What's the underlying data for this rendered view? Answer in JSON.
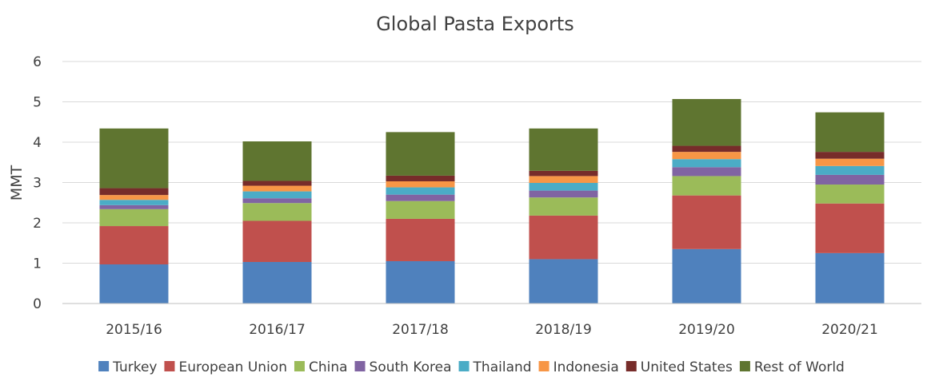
{
  "chart_data": {
    "type": "bar",
    "stacked": true,
    "title": "Global Pasta Exports",
    "xlabel": "",
    "ylabel": "MMT",
    "ylim": [
      0,
      6
    ],
    "yticks": [
      "0",
      "1",
      "2",
      "3",
      "4",
      "5",
      "6"
    ],
    "grid": true,
    "legend_position": "bottom",
    "categories": [
      "2015/16",
      "2016/17",
      "2017/18",
      "2018/19",
      "2019/20",
      "2020/21"
    ],
    "series": [
      {
        "name": "Turkey",
        "color": "#4f81bd",
        "values": [
          0.97,
          1.03,
          1.05,
          1.1,
          1.35,
          1.25
        ]
      },
      {
        "name": "European  Union",
        "color": "#c0504d",
        "values": [
          0.95,
          1.02,
          1.05,
          1.08,
          1.33,
          1.23
        ]
      },
      {
        "name": "China",
        "color": "#9bbb59",
        "values": [
          0.42,
          0.44,
          0.44,
          0.45,
          0.48,
          0.47
        ]
      },
      {
        "name": "South Korea",
        "color": "#8064a2",
        "values": [
          0.1,
          0.12,
          0.16,
          0.17,
          0.22,
          0.24
        ]
      },
      {
        "name": "Thailand",
        "color": "#4bacc6",
        "values": [
          0.13,
          0.17,
          0.18,
          0.19,
          0.2,
          0.22
        ]
      },
      {
        "name": "Indonesia",
        "color": "#f79646",
        "values": [
          0.12,
          0.14,
          0.15,
          0.17,
          0.18,
          0.18
        ]
      },
      {
        "name": "United States",
        "color": "#772c2a",
        "values": [
          0.17,
          0.12,
          0.14,
          0.13,
          0.15,
          0.17
        ]
      },
      {
        "name": "Rest of World",
        "color": "#5f7530",
        "values": [
          1.48,
          0.98,
          1.08,
          1.05,
          1.16,
          0.98
        ]
      }
    ]
  }
}
